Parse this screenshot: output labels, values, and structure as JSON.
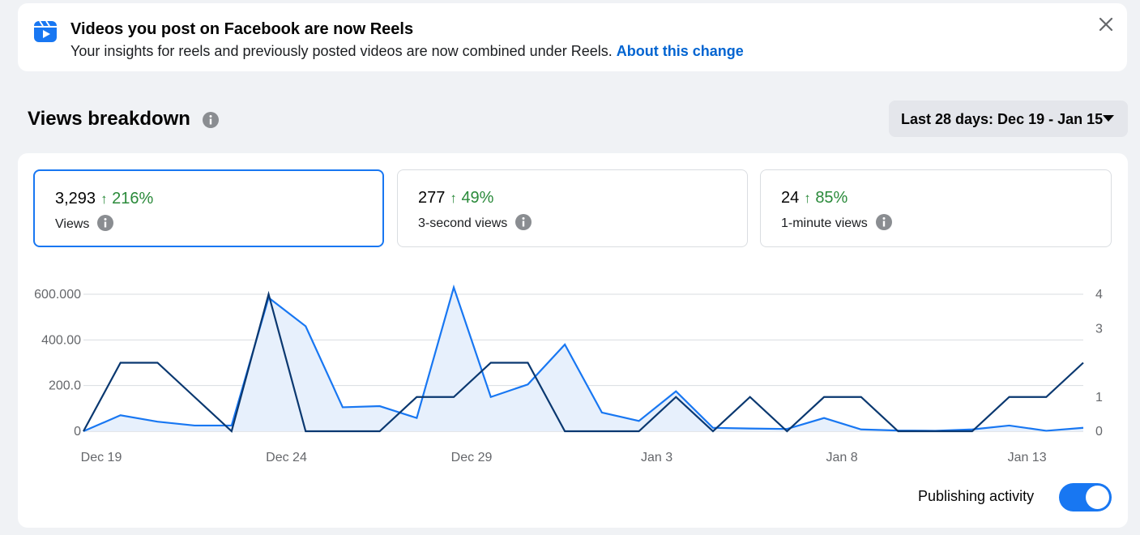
{
  "banner": {
    "title": "Videos you post on Facebook are now Reels",
    "text": "Your insights for reels and previously posted videos are now combined under Reels.",
    "link": "About this change",
    "icon": "reels-icon"
  },
  "section": {
    "title": "Views breakdown",
    "date_range": "Last 28 days: Dec 19 - Jan 15"
  },
  "metrics": [
    {
      "value": "3,293",
      "change": "216%",
      "label": "Views",
      "selected": true
    },
    {
      "value": "277",
      "change": "49%",
      "label": "3-second views",
      "selected": false
    },
    {
      "value": "24",
      "change": "85%",
      "label": "1-minute views",
      "selected": false
    }
  ],
  "toggle": {
    "label": "Publishing activity",
    "on": true
  },
  "colors": {
    "accent": "#1877f2",
    "dark_line": "#0a3870",
    "positive": "#2a8a3a",
    "area_fill": "#e7f0fc"
  },
  "chart_data": {
    "type": "line",
    "x": [
      "Dec 19",
      "Dec 20",
      "Dec 21",
      "Dec 22",
      "Dec 23",
      "Dec 24",
      "Dec 25",
      "Dec 26",
      "Dec 27",
      "Dec 28",
      "Dec 29",
      "Dec 30",
      "Dec 31",
      "Jan 1",
      "Jan 2",
      "Jan 3",
      "Jan 4",
      "Jan 5",
      "Jan 6",
      "Jan 7",
      "Jan 8",
      "Jan 9",
      "Jan 10",
      "Jan 11",
      "Jan 12",
      "Jan 13",
      "Jan 14",
      "Jan 15"
    ],
    "x_tick_labels": [
      "Dec 19",
      "Dec 24",
      "Dec 29",
      "Jan 3",
      "Jan 8",
      "Jan 13"
    ],
    "y_left_ticks": [
      "0",
      "200.0",
      "400.00",
      "600.000"
    ],
    "y_left_lim": [
      0,
      600
    ],
    "y_right_ticks": [
      "0",
      "1",
      "3",
      "4"
    ],
    "y_right_lim": [
      0,
      4
    ],
    "series": [
      {
        "axis": "left",
        "color": "#1877f2",
        "fill": true,
        "values": [
          0,
          70,
          42,
          25,
          25,
          585,
          460,
          105,
          110,
          58,
          630,
          150,
          205,
          380,
          82,
          45,
          175,
          15,
          12,
          10,
          58,
          8,
          3,
          2,
          8,
          25,
          2,
          15
        ]
      },
      {
        "axis": "right",
        "color": "#0a3870",
        "fill": false,
        "values": [
          0,
          2,
          2,
          1,
          0,
          4,
          0,
          0,
          0,
          1,
          1,
          2,
          2,
          0,
          0,
          0,
          1,
          0,
          1,
          0,
          1,
          1,
          0,
          0,
          0,
          1,
          1,
          2
        ]
      }
    ]
  }
}
